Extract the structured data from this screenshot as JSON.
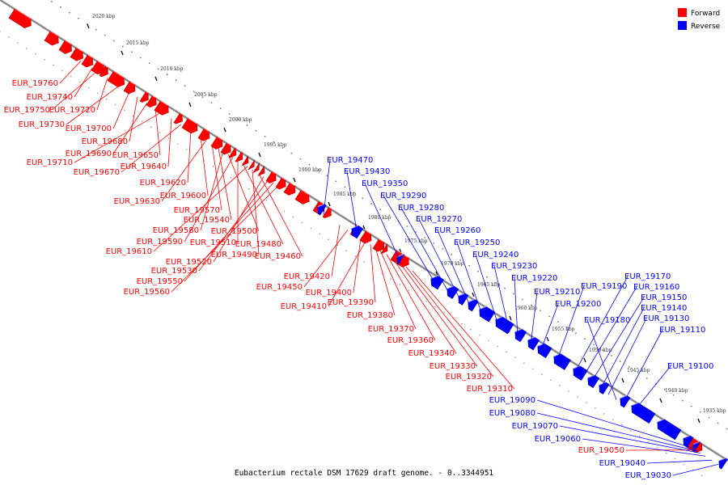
{
  "caption": "Eubacterium rectale DSM 17629 draft genome. - 0..3344951",
  "legend": [
    {
      "label": "Forward",
      "color": "#ff0000"
    },
    {
      "label": "Reverse",
      "color": "#0000ff"
    }
  ],
  "axis": {
    "line_color": "#888888",
    "tick_labels": [
      "2020 kbp",
      "2015 kbp",
      "2010 kbp",
      "2005 kbp",
      "2000 kbp",
      "1995 kbp",
      "1990 kbp",
      "1985 kbp",
      "1980 kbp",
      "1975 kbp",
      "1970 kbp",
      "1965 kbp",
      "1960 kbp",
      "1955 kbp",
      "1950 kbp",
      "1945 kbp",
      "1940 kbp",
      "1935 kbp"
    ]
  },
  "forward_genes": [
    "EUR_19760",
    "EUR_19740",
    "EUR_19750",
    "EUR_19720",
    "EUR_19730",
    "EUR_19700",
    "EUR_19680",
    "EUR_19690",
    "EUR_19650",
    "EUR_19710",
    "EUR_19640",
    "EUR_19670",
    "EUR_19620",
    "EUR_19600",
    "EUR_19630",
    "EUR_19570",
    "EUR_19540",
    "EUR_19580",
    "EUR_19500",
    "EUR_19590",
    "EUR_19510",
    "EUR_19480",
    "EUR_19610",
    "EUR_19490",
    "EUR_19460",
    "EUR_19520",
    "EUR_19530",
    "EUR_19550",
    "EUR_19560",
    "EUR_19420",
    "EUR_19450",
    "EUR_19400",
    "EUR_19410",
    "EUR_19390",
    "EUR_19380",
    "EUR_19370",
    "EUR_19360",
    "EUR_19340",
    "EUR_19330",
    "EUR_19320",
    "EUR_19310",
    "EUR_19050"
  ],
  "reverse_genes": [
    "EUR_19470",
    "EUR_19430",
    "EUR_19350",
    "EUR_19290",
    "EUR_19280",
    "EUR_19270",
    "EUR_19260",
    "EUR_19250",
    "EUR_19240",
    "EUR_19230",
    "EUR_19220",
    "EUR_19210",
    "EUR_19200",
    "EUR_19190",
    "EUR_19170",
    "EUR_19160",
    "EUR_19150",
    "EUR_19140",
    "EUR_19130",
    "EUR_19180",
    "EUR_19110",
    "EUR_19100",
    "EUR_19090",
    "EUR_19080",
    "EUR_19070",
    "EUR_19060",
    "EUR_19040",
    "EUR_19030"
  ]
}
